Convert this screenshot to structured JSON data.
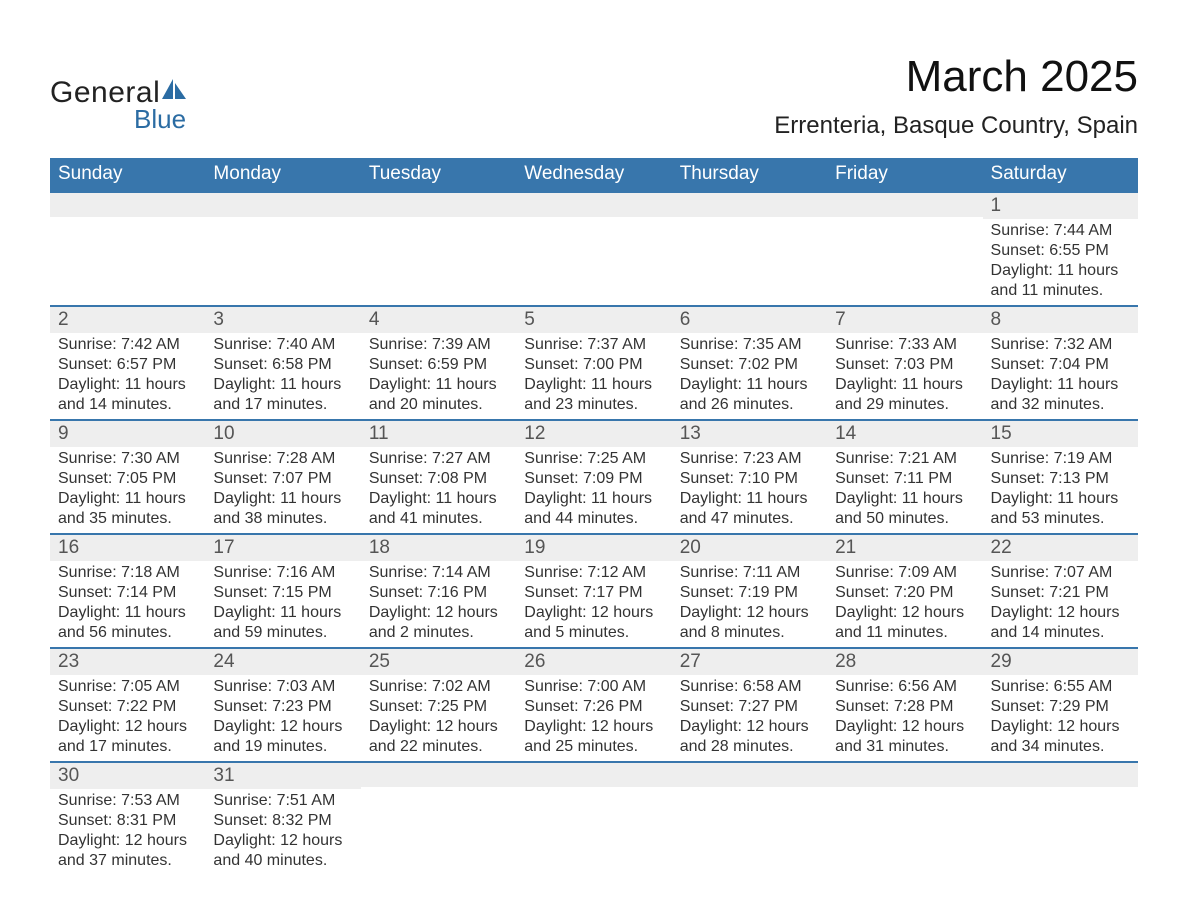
{
  "brand": {
    "name_part1": "General",
    "name_part2": "Blue",
    "text_color_dark": "#222222",
    "text_color_blue": "#2b6ca3",
    "sail_color": "#2b6ca3"
  },
  "title": {
    "month": "March 2025",
    "location": "Errenteria, Basque Country, Spain",
    "month_fontsize": 44,
    "location_fontsize": 24
  },
  "colors": {
    "header_bg": "#3876ac",
    "header_text": "#ffffff",
    "row_divider": "#3876ac",
    "daynum_bg": "#eeeeee",
    "daynum_text": "#555555",
    "body_text": "#333333",
    "page_bg": "#ffffff"
  },
  "days_of_week": [
    "Sunday",
    "Monday",
    "Tuesday",
    "Wednesday",
    "Thursday",
    "Friday",
    "Saturday"
  ],
  "layout": {
    "columns": 7,
    "cell_font_size": 16,
    "dow_font_size": 19,
    "daynum_font_size": 19
  },
  "weeks": [
    [
      null,
      null,
      null,
      null,
      null,
      null,
      {
        "day": 1,
        "sunrise": "Sunrise: 7:44 AM",
        "sunset": "Sunset: 6:55 PM",
        "daylight1": "Daylight: 11 hours",
        "daylight2": "and 11 minutes."
      }
    ],
    [
      {
        "day": 2,
        "sunrise": "Sunrise: 7:42 AM",
        "sunset": "Sunset: 6:57 PM",
        "daylight1": "Daylight: 11 hours",
        "daylight2": "and 14 minutes."
      },
      {
        "day": 3,
        "sunrise": "Sunrise: 7:40 AM",
        "sunset": "Sunset: 6:58 PM",
        "daylight1": "Daylight: 11 hours",
        "daylight2": "and 17 minutes."
      },
      {
        "day": 4,
        "sunrise": "Sunrise: 7:39 AM",
        "sunset": "Sunset: 6:59 PM",
        "daylight1": "Daylight: 11 hours",
        "daylight2": "and 20 minutes."
      },
      {
        "day": 5,
        "sunrise": "Sunrise: 7:37 AM",
        "sunset": "Sunset: 7:00 PM",
        "daylight1": "Daylight: 11 hours",
        "daylight2": "and 23 minutes."
      },
      {
        "day": 6,
        "sunrise": "Sunrise: 7:35 AM",
        "sunset": "Sunset: 7:02 PM",
        "daylight1": "Daylight: 11 hours",
        "daylight2": "and 26 minutes."
      },
      {
        "day": 7,
        "sunrise": "Sunrise: 7:33 AM",
        "sunset": "Sunset: 7:03 PM",
        "daylight1": "Daylight: 11 hours",
        "daylight2": "and 29 minutes."
      },
      {
        "day": 8,
        "sunrise": "Sunrise: 7:32 AM",
        "sunset": "Sunset: 7:04 PM",
        "daylight1": "Daylight: 11 hours",
        "daylight2": "and 32 minutes."
      }
    ],
    [
      {
        "day": 9,
        "sunrise": "Sunrise: 7:30 AM",
        "sunset": "Sunset: 7:05 PM",
        "daylight1": "Daylight: 11 hours",
        "daylight2": "and 35 minutes."
      },
      {
        "day": 10,
        "sunrise": "Sunrise: 7:28 AM",
        "sunset": "Sunset: 7:07 PM",
        "daylight1": "Daylight: 11 hours",
        "daylight2": "and 38 minutes."
      },
      {
        "day": 11,
        "sunrise": "Sunrise: 7:27 AM",
        "sunset": "Sunset: 7:08 PM",
        "daylight1": "Daylight: 11 hours",
        "daylight2": "and 41 minutes."
      },
      {
        "day": 12,
        "sunrise": "Sunrise: 7:25 AM",
        "sunset": "Sunset: 7:09 PM",
        "daylight1": "Daylight: 11 hours",
        "daylight2": "and 44 minutes."
      },
      {
        "day": 13,
        "sunrise": "Sunrise: 7:23 AM",
        "sunset": "Sunset: 7:10 PM",
        "daylight1": "Daylight: 11 hours",
        "daylight2": "and 47 minutes."
      },
      {
        "day": 14,
        "sunrise": "Sunrise: 7:21 AM",
        "sunset": "Sunset: 7:11 PM",
        "daylight1": "Daylight: 11 hours",
        "daylight2": "and 50 minutes."
      },
      {
        "day": 15,
        "sunrise": "Sunrise: 7:19 AM",
        "sunset": "Sunset: 7:13 PM",
        "daylight1": "Daylight: 11 hours",
        "daylight2": "and 53 minutes."
      }
    ],
    [
      {
        "day": 16,
        "sunrise": "Sunrise: 7:18 AM",
        "sunset": "Sunset: 7:14 PM",
        "daylight1": "Daylight: 11 hours",
        "daylight2": "and 56 minutes."
      },
      {
        "day": 17,
        "sunrise": "Sunrise: 7:16 AM",
        "sunset": "Sunset: 7:15 PM",
        "daylight1": "Daylight: 11 hours",
        "daylight2": "and 59 minutes."
      },
      {
        "day": 18,
        "sunrise": "Sunrise: 7:14 AM",
        "sunset": "Sunset: 7:16 PM",
        "daylight1": "Daylight: 12 hours",
        "daylight2": "and 2 minutes."
      },
      {
        "day": 19,
        "sunrise": "Sunrise: 7:12 AM",
        "sunset": "Sunset: 7:17 PM",
        "daylight1": "Daylight: 12 hours",
        "daylight2": "and 5 minutes."
      },
      {
        "day": 20,
        "sunrise": "Sunrise: 7:11 AM",
        "sunset": "Sunset: 7:19 PM",
        "daylight1": "Daylight: 12 hours",
        "daylight2": "and 8 minutes."
      },
      {
        "day": 21,
        "sunrise": "Sunrise: 7:09 AM",
        "sunset": "Sunset: 7:20 PM",
        "daylight1": "Daylight: 12 hours",
        "daylight2": "and 11 minutes."
      },
      {
        "day": 22,
        "sunrise": "Sunrise: 7:07 AM",
        "sunset": "Sunset: 7:21 PM",
        "daylight1": "Daylight: 12 hours",
        "daylight2": "and 14 minutes."
      }
    ],
    [
      {
        "day": 23,
        "sunrise": "Sunrise: 7:05 AM",
        "sunset": "Sunset: 7:22 PM",
        "daylight1": "Daylight: 12 hours",
        "daylight2": "and 17 minutes."
      },
      {
        "day": 24,
        "sunrise": "Sunrise: 7:03 AM",
        "sunset": "Sunset: 7:23 PM",
        "daylight1": "Daylight: 12 hours",
        "daylight2": "and 19 minutes."
      },
      {
        "day": 25,
        "sunrise": "Sunrise: 7:02 AM",
        "sunset": "Sunset: 7:25 PM",
        "daylight1": "Daylight: 12 hours",
        "daylight2": "and 22 minutes."
      },
      {
        "day": 26,
        "sunrise": "Sunrise: 7:00 AM",
        "sunset": "Sunset: 7:26 PM",
        "daylight1": "Daylight: 12 hours",
        "daylight2": "and 25 minutes."
      },
      {
        "day": 27,
        "sunrise": "Sunrise: 6:58 AM",
        "sunset": "Sunset: 7:27 PM",
        "daylight1": "Daylight: 12 hours",
        "daylight2": "and 28 minutes."
      },
      {
        "day": 28,
        "sunrise": "Sunrise: 6:56 AM",
        "sunset": "Sunset: 7:28 PM",
        "daylight1": "Daylight: 12 hours",
        "daylight2": "and 31 minutes."
      },
      {
        "day": 29,
        "sunrise": "Sunrise: 6:55 AM",
        "sunset": "Sunset: 7:29 PM",
        "daylight1": "Daylight: 12 hours",
        "daylight2": "and 34 minutes."
      }
    ],
    [
      {
        "day": 30,
        "sunrise": "Sunrise: 7:53 AM",
        "sunset": "Sunset: 8:31 PM",
        "daylight1": "Daylight: 12 hours",
        "daylight2": "and 37 minutes."
      },
      {
        "day": 31,
        "sunrise": "Sunrise: 7:51 AM",
        "sunset": "Sunset: 8:32 PM",
        "daylight1": "Daylight: 12 hours",
        "daylight2": "and 40 minutes."
      },
      null,
      null,
      null,
      null,
      null
    ]
  ]
}
